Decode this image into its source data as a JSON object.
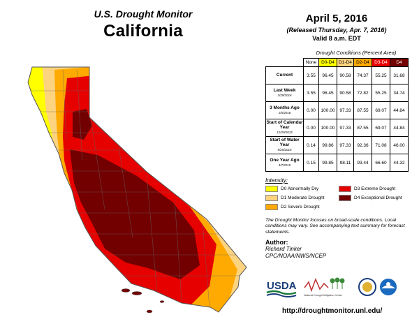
{
  "header": {
    "subtitle": "U.S. Drought Monitor",
    "state": "California",
    "date": "April 5, 2016",
    "released": "(Released Thursday, Apr. 7, 2016)",
    "valid": "Valid 8 a.m. EDT"
  },
  "table": {
    "title": "Drought Conditions (Percent Area)",
    "columns": [
      "None",
      "D0-D4",
      "D1-D4",
      "D2-D4",
      "D3-D4",
      "D4"
    ],
    "column_colors": [
      "#ffffff",
      "#ffff00",
      "#fcd37f",
      "#ffaa00",
      "#e60000",
      "#730000"
    ],
    "rows": [
      {
        "label": "Current",
        "date": "",
        "values": [
          "3.55",
          "96.45",
          "90.58",
          "74.37",
          "55.25",
          "31.68"
        ]
      },
      {
        "label": "Last Week",
        "date": "3/29/2016",
        "values": [
          "3.55",
          "96.45",
          "90.58",
          "72.82",
          "55.25",
          "34.74"
        ]
      },
      {
        "label": "3 Months Ago",
        "date": "1/5/2016",
        "values": [
          "0.00",
          "100.00",
          "97.33",
          "87.55",
          "69.07",
          "44.84"
        ]
      },
      {
        "label": "Start of Calendar Year",
        "date": "12/29/2015",
        "values": [
          "0.00",
          "100.00",
          "97.33",
          "87.55",
          "69.07",
          "44.84"
        ]
      },
      {
        "label": "Start of Water Year",
        "date": "9/29/2015",
        "values": [
          "0.14",
          "99.86",
          "97.33",
          "92.36",
          "71.08",
          "46.00"
        ]
      },
      {
        "label": "One Year Ago",
        "date": "4/7/2015",
        "values": [
          "0.15",
          "99.85",
          "98.11",
          "93.44",
          "66.60",
          "44.32"
        ]
      }
    ]
  },
  "legend": {
    "title": "Intensity:",
    "items": [
      {
        "label": "D0 Abnormally Dry",
        "color": "#ffff00"
      },
      {
        "label": "D3 Extreme Drought",
        "color": "#e60000"
      },
      {
        "label": "D1 Moderate Drought",
        "color": "#fcd37f"
      },
      {
        "label": "D4 Exceptional Drought",
        "color": "#730000"
      },
      {
        "label": "D2 Severe Drought",
        "color": "#ffaa00"
      }
    ]
  },
  "note": "The Drought Monitor focuses on broad-scale conditions. Local conditions may vary. See accompanying text summary for forecast statements.",
  "author": {
    "label": "Author:",
    "name": "Richard Tinker",
    "org": "CPC/NOAA/NWS/NCEP"
  },
  "logos": {
    "usda": "USDA",
    "ndmc": "National Drought Mitigation Center"
  },
  "url": "http://droughtmonitor.unl.edu/",
  "map_colors": {
    "d0": "#ffff00",
    "d1": "#fcd37f",
    "d2": "#ffaa00",
    "d3": "#e60000",
    "d4": "#730000",
    "border": "#888888"
  }
}
